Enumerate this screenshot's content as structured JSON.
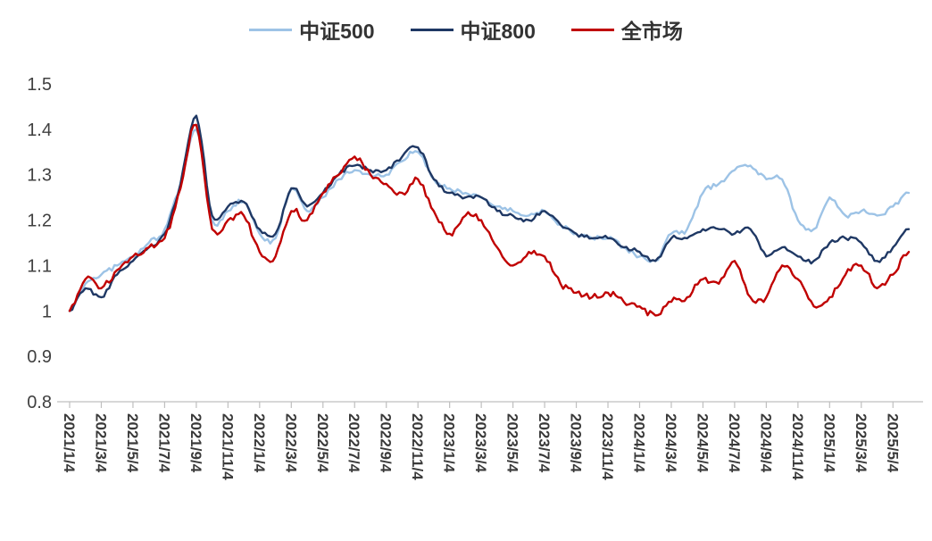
{
  "chart": {
    "axis_color": "#BFBFBF",
    "text_color": "#404040",
    "x_label_color": "#3A3A3A",
    "background": "#FFFFFF"
  },
  "chart_data": {
    "type": "line",
    "title": "",
    "xlabel": "",
    "ylabel": "",
    "ylim": [
      0.8,
      1.5
    ],
    "y_tick_labels": [
      "0.8",
      "0.9",
      "1",
      "1.1",
      "1.2",
      "1.3",
      "1.4",
      "1.5"
    ],
    "x_frequency": "monthly",
    "x_tick_labels": [
      "2021/1/4",
      "2021/3/4",
      "2021/5/4",
      "2021/7/4",
      "2021/9/4",
      "2021/11/4",
      "2022/1/4",
      "2022/3/4",
      "2022/5/4",
      "2022/7/4",
      "2022/9/4",
      "2022/11/4",
      "2023/1/4",
      "2023/3/4",
      "2023/5/4",
      "2023/7/4",
      "2023/9/4",
      "2023/11/4",
      "2024/1/4",
      "2024/3/4",
      "2024/5/4",
      "2024/7/4",
      "2024/9/4",
      "2024/11/4",
      "2025/1/4",
      "2025/3/4",
      "2025/5/4"
    ],
    "grid": "off",
    "legend_position": "top",
    "series": [
      {
        "name": "中证500",
        "color": "#9DC3E6",
        "values": [
          1.0,
          1.06,
          1.08,
          1.1,
          1.12,
          1.15,
          1.18,
          1.28,
          1.4,
          1.2,
          1.22,
          1.24,
          1.17,
          1.16,
          1.27,
          1.22,
          1.25,
          1.29,
          1.31,
          1.3,
          1.3,
          1.33,
          1.35,
          1.29,
          1.27,
          1.26,
          1.25,
          1.23,
          1.22,
          1.21,
          1.22,
          1.19,
          1.17,
          1.16,
          1.16,
          1.14,
          1.12,
          1.11,
          1.17,
          1.18,
          1.26,
          1.28,
          1.31,
          1.32,
          1.29,
          1.29,
          1.2,
          1.18,
          1.25,
          1.21,
          1.22,
          1.21,
          1.23,
          1.26
        ]
      },
      {
        "name": "中证800",
        "color": "#1F3864",
        "values": [
          1.0,
          1.05,
          1.03,
          1.08,
          1.11,
          1.14,
          1.17,
          1.28,
          1.43,
          1.21,
          1.23,
          1.24,
          1.18,
          1.17,
          1.27,
          1.23,
          1.26,
          1.3,
          1.32,
          1.31,
          1.31,
          1.34,
          1.36,
          1.29,
          1.26,
          1.25,
          1.25,
          1.22,
          1.21,
          1.2,
          1.22,
          1.19,
          1.17,
          1.16,
          1.16,
          1.14,
          1.13,
          1.11,
          1.16,
          1.16,
          1.18,
          1.18,
          1.17,
          1.18,
          1.12,
          1.14,
          1.12,
          1.11,
          1.15,
          1.16,
          1.15,
          1.11,
          1.14,
          1.18
        ]
      },
      {
        "name": "全市场",
        "color": "#C00000",
        "values": [
          1.0,
          1.07,
          1.05,
          1.09,
          1.12,
          1.14,
          1.16,
          1.27,
          1.41,
          1.18,
          1.2,
          1.21,
          1.13,
          1.12,
          1.22,
          1.2,
          1.26,
          1.3,
          1.34,
          1.3,
          1.28,
          1.26,
          1.29,
          1.22,
          1.17,
          1.21,
          1.2,
          1.14,
          1.1,
          1.13,
          1.12,
          1.06,
          1.04,
          1.03,
          1.04,
          1.02,
          1.01,
          0.99,
          1.02,
          1.03,
          1.07,
          1.06,
          1.11,
          1.03,
          1.03,
          1.1,
          1.07,
          1.01,
          1.03,
          1.08,
          1.1,
          1.05,
          1.08,
          1.13
        ]
      }
    ]
  }
}
